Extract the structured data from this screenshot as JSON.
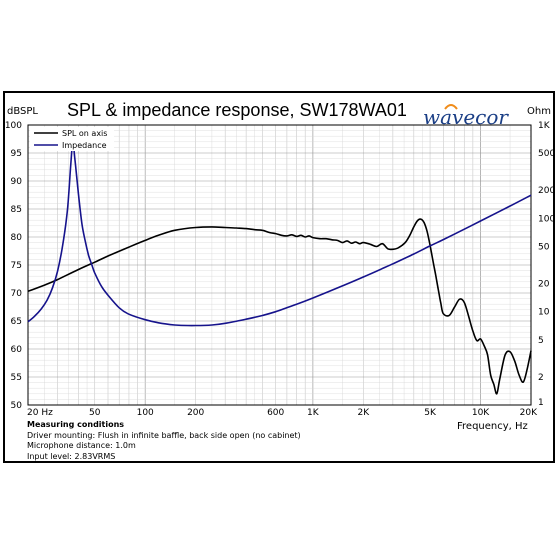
{
  "chart_data": {
    "type": "line",
    "title": "SPL & impedance response, SW178WA01",
    "brand": "wavecor",
    "xlabel": "Frequency, Hz",
    "ylabel_left": "dBSPL",
    "ylabel_right": "Ohm",
    "x_scale": "log",
    "xlim": [
      20,
      20000
    ],
    "ylim_left": [
      50,
      100
    ],
    "ylim_right": [
      1,
      1000
    ],
    "y_right_scale": "log",
    "grid": true,
    "legend_position": "top-left",
    "x_ticks": [
      {
        "value": 20,
        "label": "20 Hz"
      },
      {
        "value": 50,
        "label": "50"
      },
      {
        "value": 100,
        "label": "100"
      },
      {
        "value": 200,
        "label": "200"
      },
      {
        "value": 600,
        "label": "600"
      },
      {
        "value": 1000,
        "label": "1K"
      },
      {
        "value": 2000,
        "label": "2K"
      },
      {
        "value": 5000,
        "label": "5K"
      },
      {
        "value": 10000,
        "label": "10K"
      },
      {
        "value": 20000,
        "label": "20K"
      }
    ],
    "y_left_ticks": [
      100,
      95,
      90,
      85,
      80,
      75,
      70,
      65,
      60,
      55,
      50
    ],
    "y_right_ticks": [
      {
        "value": 1000,
        "label": "1K"
      },
      {
        "value": 500,
        "label": "500"
      },
      {
        "value": 200,
        "label": "200"
      },
      {
        "value": 100,
        "label": "100"
      },
      {
        "value": 50,
        "label": "50"
      },
      {
        "value": 20,
        "label": "20"
      },
      {
        "value": 10,
        "label": "10"
      },
      {
        "value": 5,
        "label": "5"
      },
      {
        "value": 2,
        "label": "2"
      },
      {
        "value": 1,
        "label": "1"
      }
    ],
    "series": [
      {
        "name": "SPL on axis",
        "axis": "left",
        "color": "#000000",
        "x": [
          20,
          25,
          30,
          40,
          50,
          60,
          80,
          100,
          120,
          150,
          200,
          250,
          300,
          350,
          400,
          450,
          500,
          550,
          600,
          650,
          700,
          750,
          800,
          850,
          900,
          950,
          1000,
          1100,
          1200,
          1300,
          1400,
          1500,
          1600,
          1700,
          1800,
          1900,
          2000,
          2200,
          2400,
          2600,
          2800,
          3000,
          3200,
          3400,
          3600,
          3800,
          4000,
          4200,
          4400,
          4600,
          4800,
          5000,
          5200,
          5400,
          5600,
          5800,
          6000,
          6500,
          7000,
          7500,
          8000,
          8500,
          9000,
          9500,
          10000,
          10500,
          11000,
          11500,
          12000,
          12500,
          13000,
          14000,
          15000,
          16000,
          17000,
          18000,
          19000,
          20000
        ],
        "y": [
          70.3,
          71.4,
          72.4,
          74.2,
          75.5,
          76.6,
          78.2,
          79.4,
          80.3,
          81.2,
          81.7,
          81.8,
          81.7,
          81.6,
          81.5,
          81.3,
          81.2,
          80.8,
          80.6,
          80.3,
          80.2,
          80.4,
          80.1,
          80.3,
          80.0,
          80.2,
          79.9,
          79.7,
          79.7,
          79.5,
          79.4,
          79.0,
          79.3,
          78.9,
          79.1,
          78.8,
          79.0,
          78.7,
          78.3,
          78.8,
          77.9,
          77.8,
          78.0,
          78.5,
          79.2,
          80.4,
          81.8,
          82.9,
          83.2,
          82.6,
          81.0,
          78.5,
          75.8,
          73.2,
          70.6,
          68.1,
          66.3,
          66.0,
          67.5,
          68.9,
          68.3,
          65.8,
          63.2,
          61.5,
          61.8,
          60.6,
          59.0,
          55.3,
          53.7,
          52.0,
          54.5,
          58.9,
          59.5,
          57.8,
          55.3,
          54.1,
          56.5,
          59.7
        ]
      },
      {
        "name": "Impedance",
        "axis": "right",
        "color": "#16138c",
        "x": [
          20,
          22,
          24,
          26,
          28,
          30,
          32,
          34,
          35,
          36,
          37,
          38,
          40,
          42,
          44,
          46,
          48,
          50,
          55,
          60,
          70,
          80,
          100,
          120,
          150,
          180,
          200,
          250,
          300,
          400,
          500,
          600,
          800,
          1000,
          1500,
          2000,
          3000,
          4000,
          5000,
          6000,
          8000,
          10000,
          15000,
          20000
        ],
        "y": [
          7.8,
          9.0,
          10.7,
          13.3,
          18.0,
          27.0,
          48.0,
          102.0,
          180.0,
          380.0,
          650.0,
          450.0,
          180.0,
          86.0,
          56.0,
          40.0,
          32.0,
          26.0,
          18.5,
          15.0,
          11.0,
          9.4,
          8.2,
          7.6,
          7.2,
          7.1,
          7.1,
          7.2,
          7.5,
          8.3,
          9.1,
          10.0,
          12.0,
          14.0,
          18.9,
          23.5,
          32.6,
          41.5,
          50.6,
          59.2,
          76.5,
          93.6,
          135.7,
          177.0
        ]
      }
    ]
  },
  "measuring_conditions": {
    "heading": "Measuring conditions",
    "mounting": "Driver mounting: Flush in infinite baffle, back side open (no cabinet)",
    "distance": "Microphone distance: 1.0m",
    "input_level": "Input level: 2.83VRMS"
  }
}
